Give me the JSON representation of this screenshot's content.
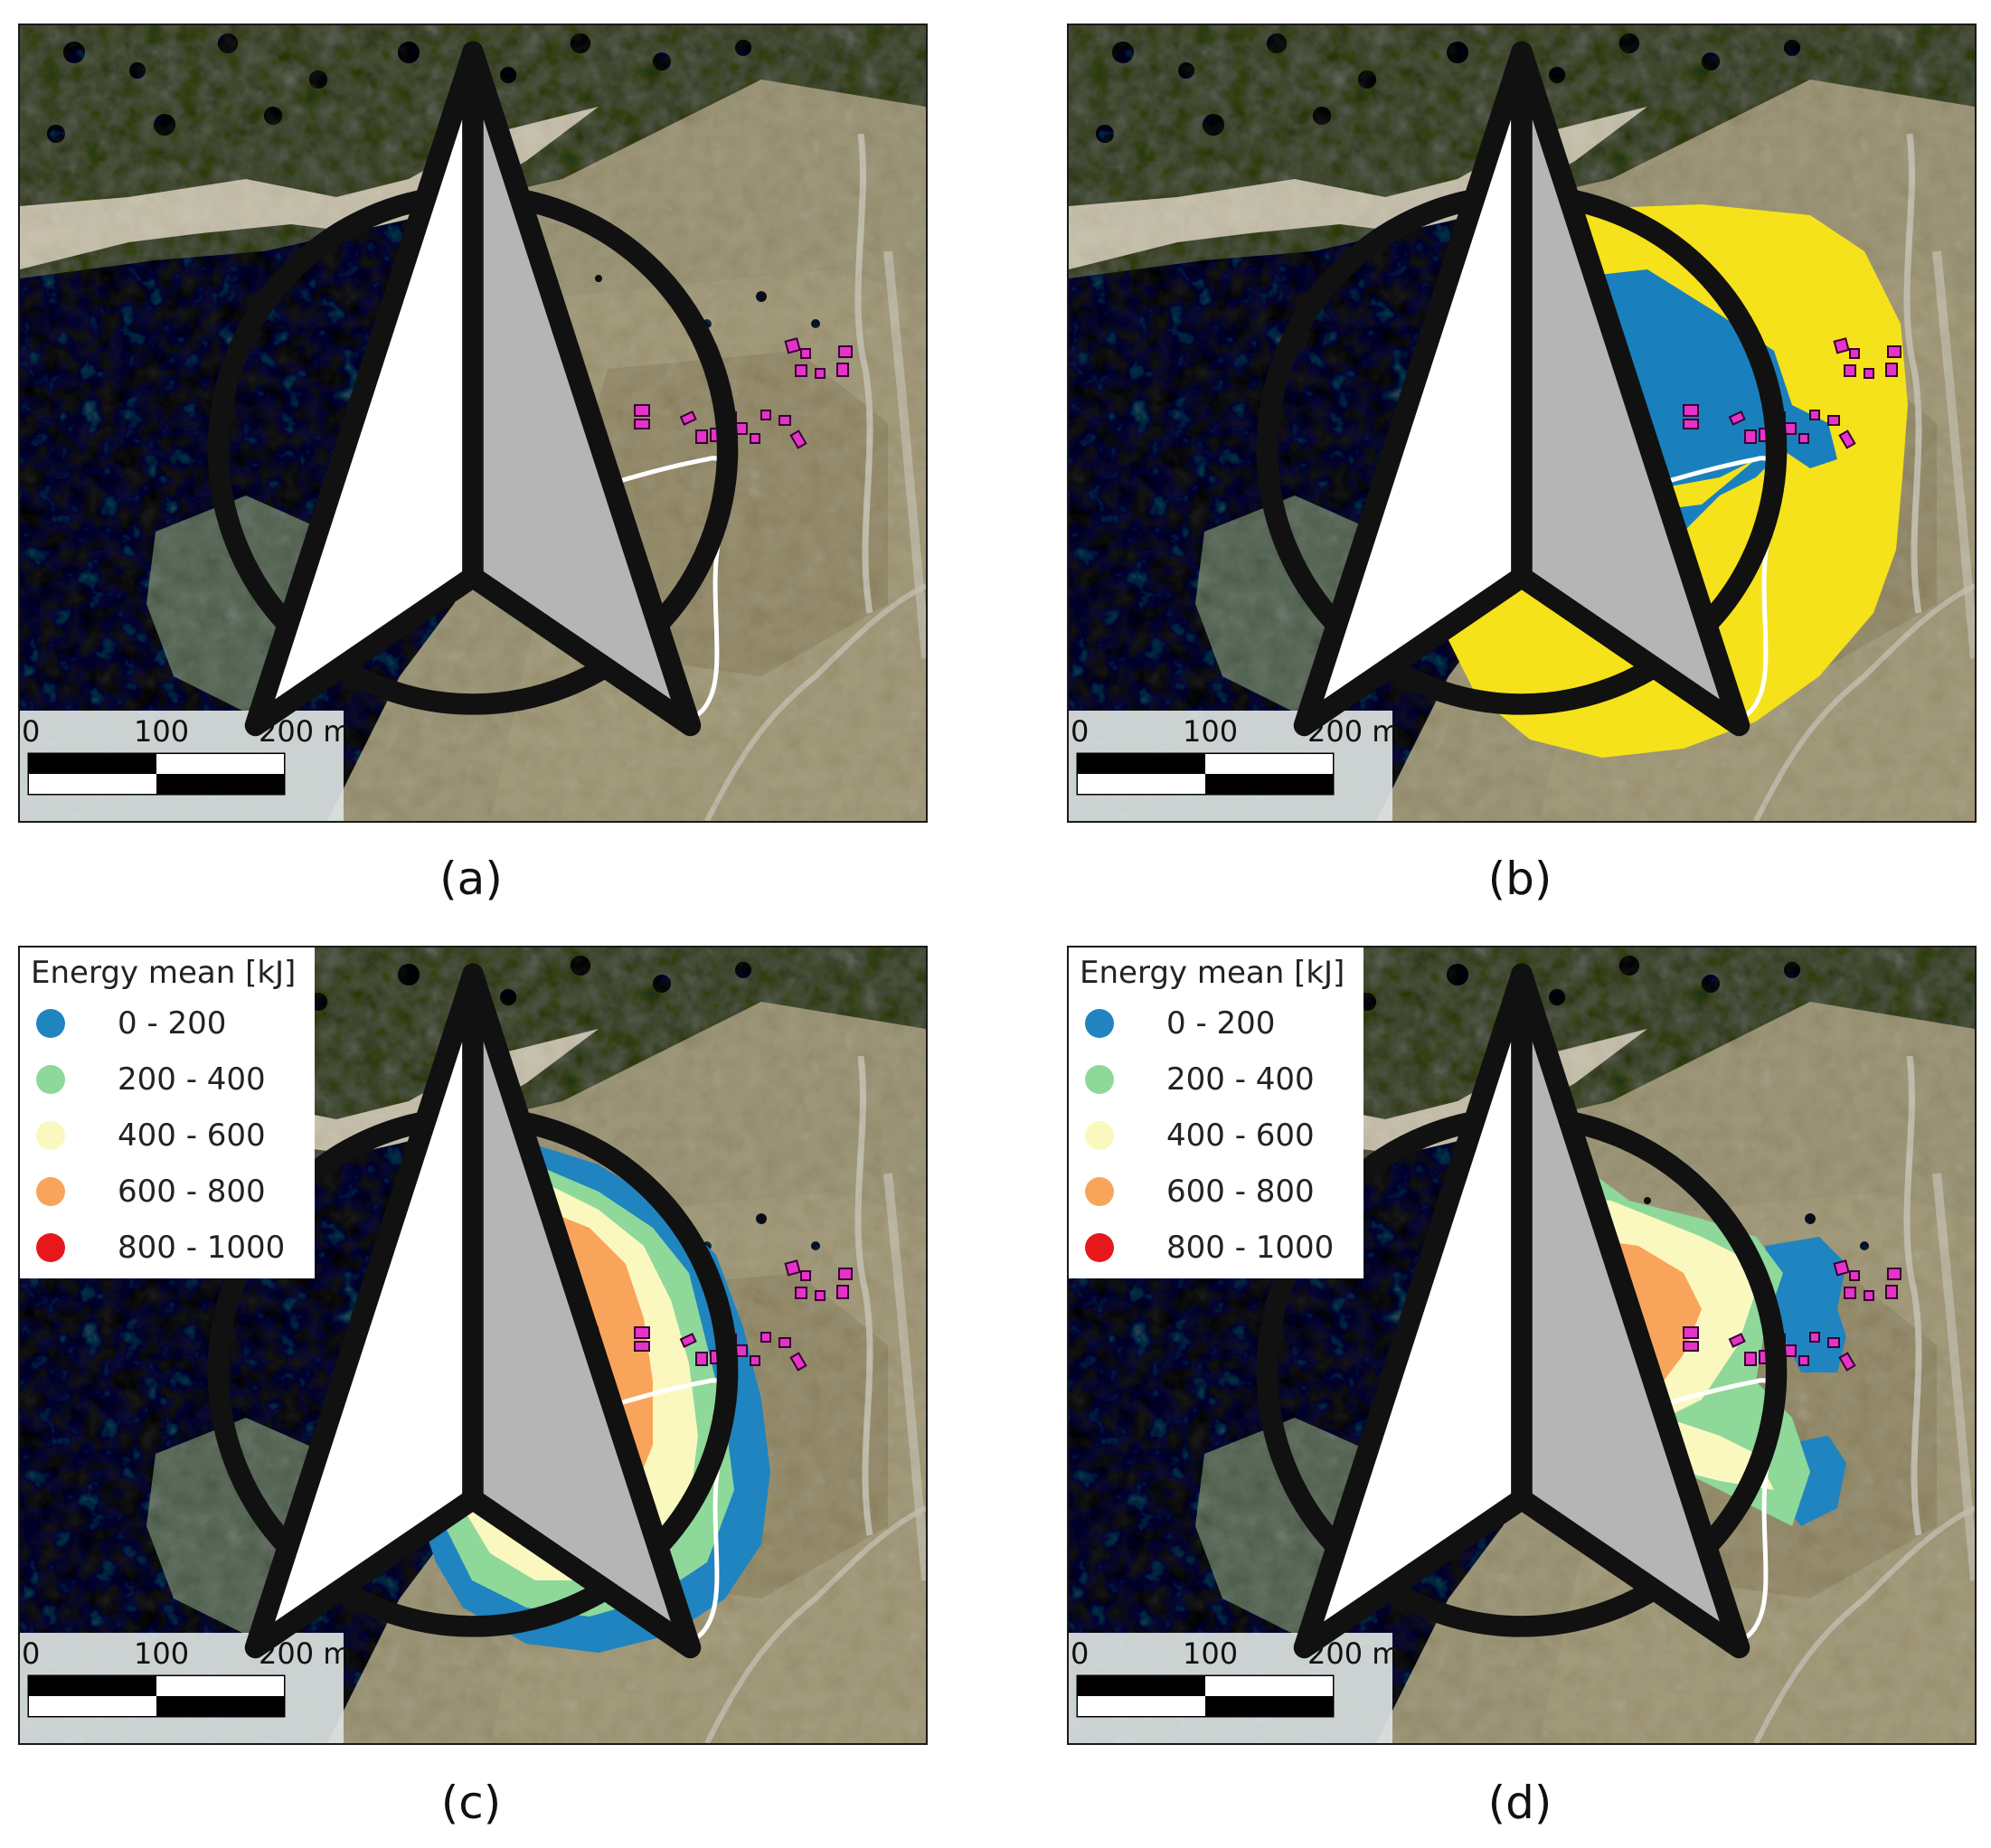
{
  "panels": [
    {
      "id": "a",
      "caption": "(a)",
      "layers": [],
      "has_legend": false
    },
    {
      "id": "b",
      "caption": "(b)",
      "layers": [
        "extent-yellow",
        "extent-blue"
      ],
      "has_legend": false
    },
    {
      "id": "c",
      "caption": "(c)",
      "layers": [
        "energy-c"
      ],
      "has_legend": true
    },
    {
      "id": "d",
      "caption": "(d)",
      "layers": [
        "energy-d"
      ],
      "has_legend": true
    }
  ],
  "legend": {
    "title": "Energy mean [kJ]",
    "classes": [
      {
        "label": "0 - 200",
        "color": "#1f84c0"
      },
      {
        "label": "200 - 400",
        "color": "#8ed89a"
      },
      {
        "label": "400 - 600",
        "color": "#fbf8bf"
      },
      {
        "label": "600 - 800",
        "color": "#f8a55b"
      },
      {
        "label": "800 - 1000",
        "color": "#e8171b"
      }
    ]
  },
  "scale_bar": {
    "labels": [
      "0",
      "100",
      "200 m"
    ]
  },
  "colors": {
    "extent_yellow": "#f5e21a",
    "extent_blue": "#1a80bd",
    "building_magenta": "#e533c8",
    "release_points": "#ffffff",
    "path_line": "#ffffff",
    "imagery_forest": "#2b3e4d",
    "imagery_meadow": "#a29c83",
    "imagery_rock": "#cfcbba"
  },
  "icons": {
    "north_arrow": "north-arrow-icon",
    "buildings": "building-icon",
    "release": "release-point-icon"
  }
}
